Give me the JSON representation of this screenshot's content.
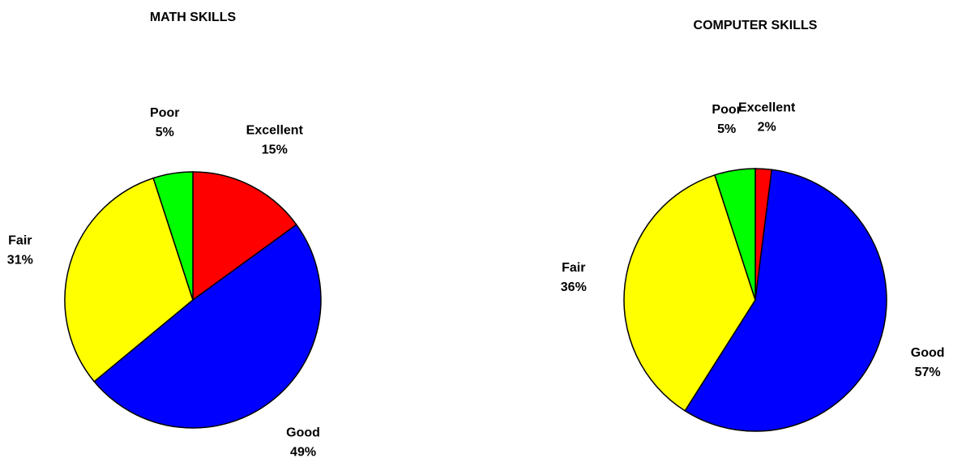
{
  "chart_data": [
    {
      "type": "pie",
      "title": "MATH SKILLS",
      "categories": [
        "Excellent",
        "Good",
        "Fair",
        "Poor"
      ],
      "values": [
        15,
        49,
        31,
        5
      ],
      "value_labels": [
        "15%",
        "49%",
        "31%",
        "5%"
      ],
      "colors": [
        "#ff0000",
        "#0000ff",
        "#ffff00",
        "#00ff00"
      ]
    },
    {
      "type": "pie",
      "title": "COMPUTER SKILLS",
      "categories": [
        "Excellent",
        "Good",
        "Fair",
        "Poor"
      ],
      "values": [
        2,
        57,
        36,
        5
      ],
      "value_labels": [
        "2%",
        "57%",
        "36%",
        "5%"
      ],
      "colors": [
        "#ff0000",
        "#0000ff",
        "#ffff00",
        "#00ff00"
      ]
    }
  ]
}
